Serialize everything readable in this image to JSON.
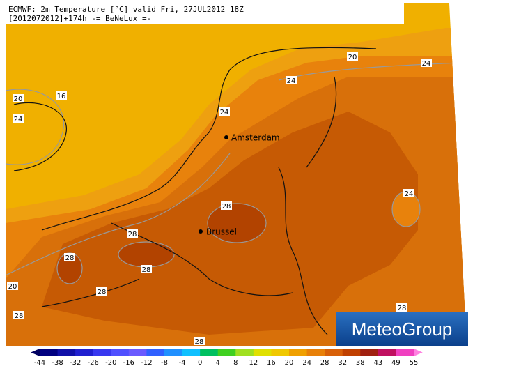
{
  "header": {
    "line1": "ECMWF: 2m Temperature [°C] valid Fri, 27JUL2012 18Z",
    "line2": "[2012072012]+174h -= BeNeLux =-"
  },
  "contour_labels": [
    16,
    20,
    20,
    20,
    24,
    24,
    24,
    24,
    24,
    28,
    28,
    28,
    28,
    28,
    28,
    28,
    28
  ],
  "cities": [
    "Amsterdam",
    "Brussel"
  ],
  "logo": "MeteoGroup",
  "colorbar": {
    "ticks": [
      -44,
      -38,
      -32,
      -26,
      -20,
      -16,
      -12,
      -8,
      -4,
      0,
      4,
      8,
      12,
      16,
      20,
      24,
      28,
      32,
      38,
      43,
      49,
      55
    ]
  }
}
